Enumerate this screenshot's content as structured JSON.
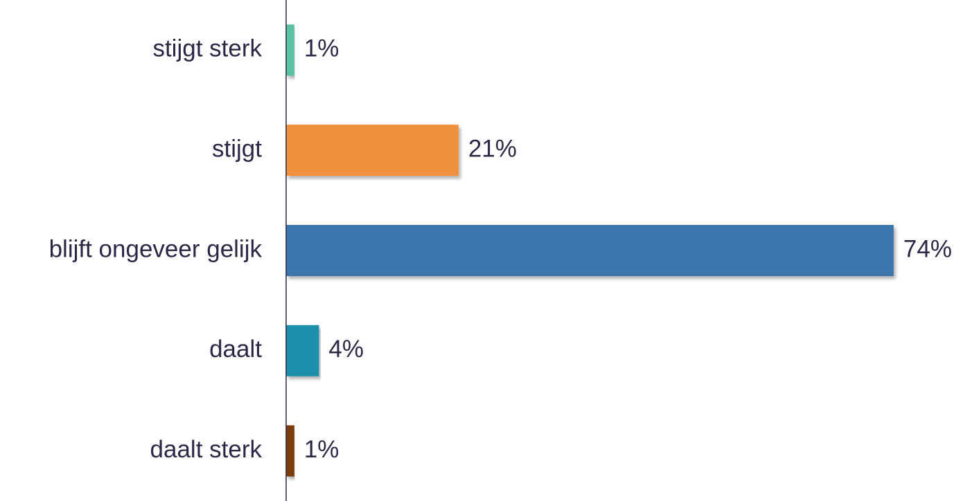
{
  "chart_data": {
    "type": "hbar",
    "categories": [
      "stijgt sterk",
      "stijgt",
      "blijft ongeveer gelijk",
      "daalt",
      "daalt sterk"
    ],
    "values": [
      1,
      21,
      74,
      4,
      1
    ],
    "value_labels": [
      "1%",
      "21%",
      "74%",
      "4%",
      "1%"
    ],
    "colors": [
      "#5cc3a2",
      "#f0903e",
      "#3c76ad",
      "#1f8fab",
      "#7b3a10"
    ],
    "xlim": [
      0,
      80
    ]
  }
}
